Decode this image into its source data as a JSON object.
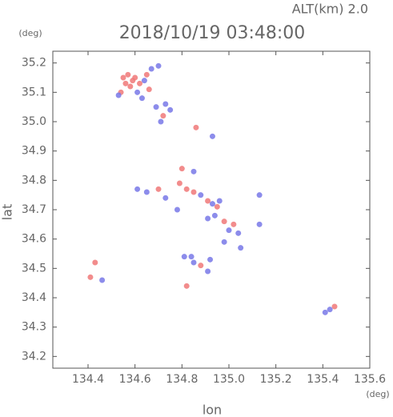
{
  "chart_data": {
    "type": "scatter",
    "title": "2018/10/19 03:48:00",
    "subtitle": "ALT(km) 2.0",
    "y_unit": "(deg)",
    "x_unit": "(deg)",
    "x_label": "lon",
    "y_label": "lat",
    "xlim": [
      134.25,
      135.6
    ],
    "ylim": [
      34.16,
      35.24
    ],
    "xticks": [
      134.4,
      134.6,
      134.8,
      {
        "value": 135,
        "label": "135.0"
      },
      135.2,
      135.4,
      135.6
    ],
    "yticks": [
      34.2,
      34.3,
      34.4,
      34.5,
      34.6,
      34.7,
      34.8,
      34.9,
      {
        "value": 35,
        "label": "35.0"
      },
      35.1,
      35.2
    ],
    "series": [
      {
        "color": "#f07878",
        "x": [
          134.55,
          134.57,
          134.59,
          134.56,
          134.58,
          134.6,
          134.62,
          134.54,
          134.65,
          134.66,
          134.72,
          134.86,
          134.79,
          134.82,
          134.85,
          134.91,
          134.95,
          134.98,
          135.02,
          134.7,
          134.8,
          134.88,
          134.41,
          134.82,
          135.45,
          134.43
        ],
        "y": [
          35.15,
          35.16,
          35.14,
          35.13,
          35.12,
          35.15,
          35.13,
          35.1,
          35.16,
          35.11,
          35.02,
          34.98,
          34.79,
          34.77,
          34.76,
          34.73,
          34.71,
          34.66,
          34.65,
          34.77,
          34.84,
          34.51,
          34.47,
          34.44,
          34.37,
          34.52
        ]
      },
      {
        "color": "#7878e8",
        "x": [
          134.53,
          134.61,
          134.64,
          134.67,
          134.7,
          134.63,
          134.69,
          134.73,
          134.75,
          134.71,
          134.93,
          134.85,
          134.61,
          134.65,
          134.73,
          134.78,
          134.88,
          134.93,
          134.96,
          134.94,
          135.0,
          135.04,
          134.98,
          134.91,
          135.05,
          135.13,
          135.13,
          134.85,
          134.92,
          134.91,
          134.84,
          134.81,
          134.46,
          135.41,
          135.43
        ],
        "y": [
          35.09,
          35.1,
          35.14,
          35.18,
          35.19,
          35.08,
          35.05,
          35.06,
          35.04,
          35.0,
          34.95,
          34.83,
          34.77,
          34.76,
          34.74,
          34.7,
          34.75,
          34.72,
          34.73,
          34.68,
          34.63,
          34.62,
          34.59,
          34.67,
          34.57,
          34.65,
          34.75,
          34.52,
          34.53,
          34.49,
          34.54,
          34.54,
          34.46,
          34.35,
          34.36
        ]
      }
    ]
  }
}
